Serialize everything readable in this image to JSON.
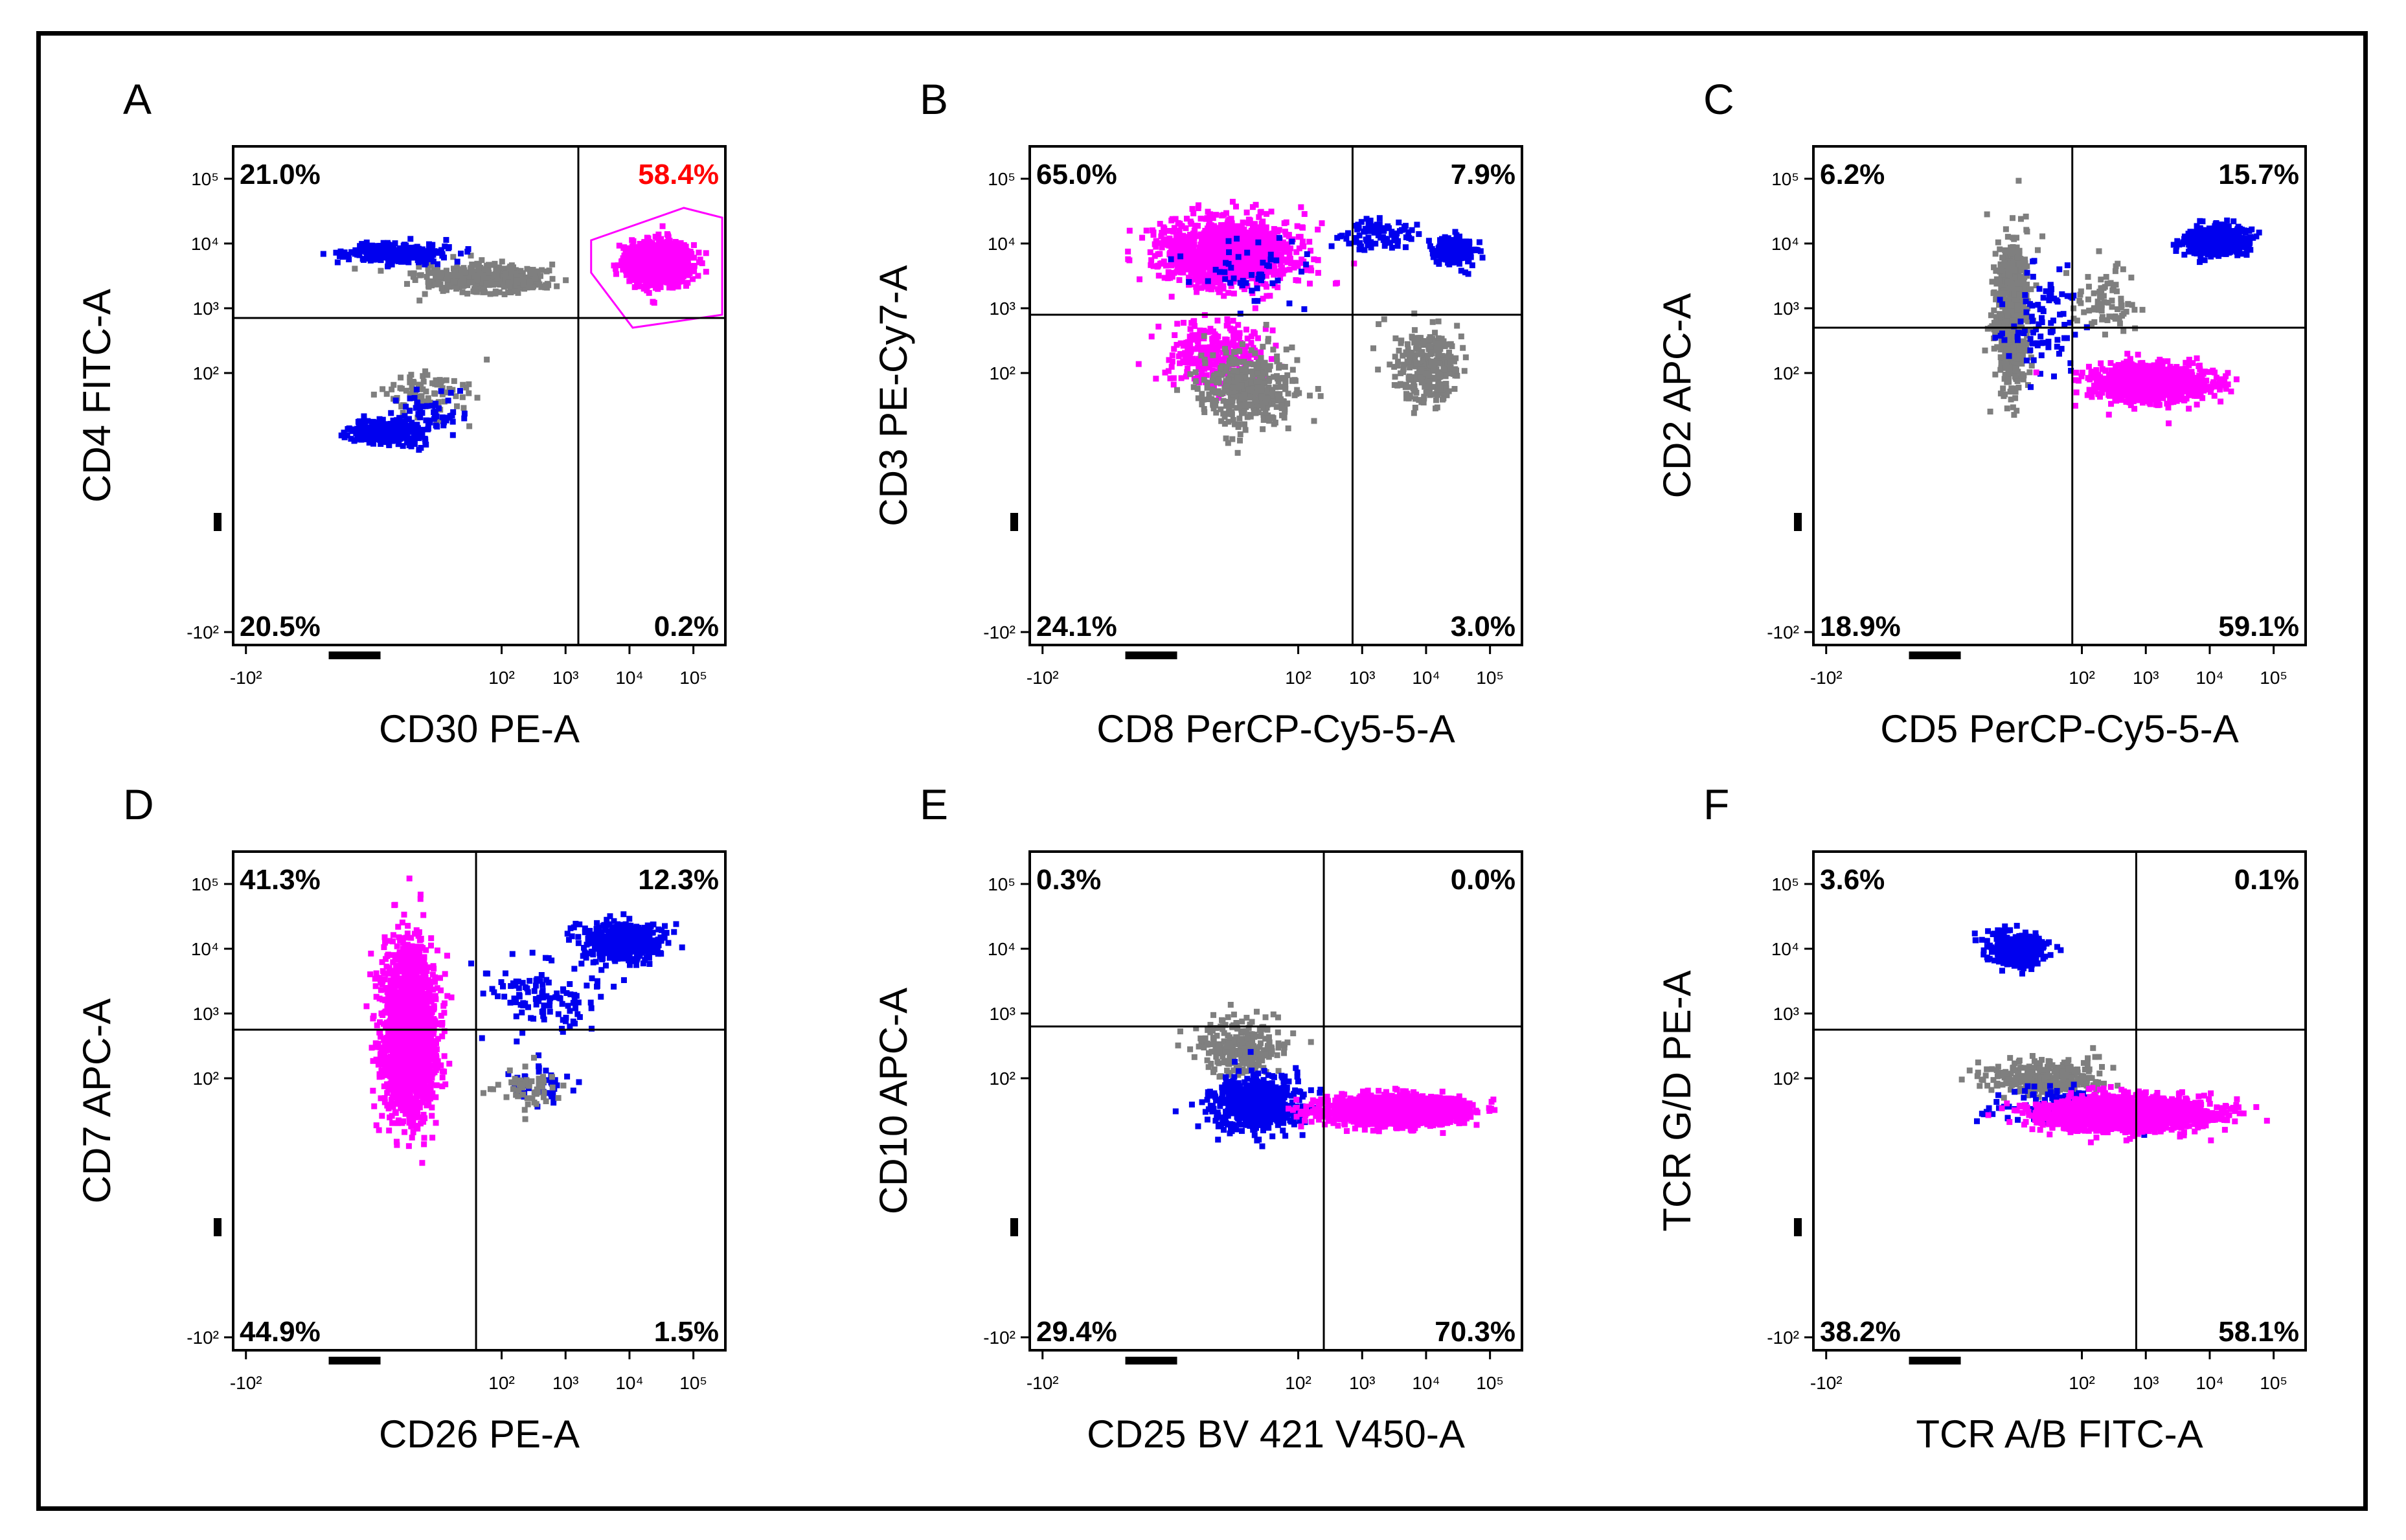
{
  "colors": {
    "blue": "#0000ee",
    "gray": "#7f7f7f",
    "magenta": "#ff00ff",
    "red": "#ff0000",
    "black": "#000000"
  },
  "chart_data": [
    {
      "panel": "A",
      "type": "scatter",
      "xlabel": "CD30 PE-A",
      "ylabel": "CD4 FITC-A",
      "x_ticks": [
        "-10²",
        "10²",
        "10³",
        "10⁴",
        "10⁵"
      ],
      "y_ticks": [
        "-10²",
        "10²",
        "10³",
        "10⁴",
        "10⁵"
      ],
      "axis_range_log10": [
        -2.2,
        5.5
      ],
      "quadrant_gate": {
        "x": 3.2,
        "y": 2.85
      },
      "quadrants": [
        {
          "position": "top-left",
          "label": "21.0%",
          "color": "#000000"
        },
        {
          "position": "top-right",
          "label": "58.4%",
          "color": "#ff0000"
        },
        {
          "position": "bottom-left",
          "label": "20.5%",
          "color": "#000000"
        },
        {
          "position": "bottom-right",
          "label": "0.2%",
          "color": "#000000"
        }
      ],
      "polygon_gate": [
        [
          3.4,
          4.05
        ],
        [
          4.85,
          4.55
        ],
        [
          5.45,
          4.4
        ],
        [
          5.45,
          2.9
        ],
        [
          4.05,
          2.7
        ],
        [
          3.4,
          3.55
        ]
      ],
      "populations": [
        {
          "color": "gray",
          "count": 380,
          "cx": 1.7,
          "cy": 3.45,
          "sx": 1.0,
          "sy": 0.22
        },
        {
          "color": "gray",
          "count": 90,
          "cx": 0.9,
          "cy": 1.65,
          "sx": 0.7,
          "sy": 0.4
        },
        {
          "color": "blue",
          "count": 320,
          "cx": 0.3,
          "cy": 3.85,
          "sx": 0.75,
          "sy": 0.14
        },
        {
          "color": "blue",
          "count": 300,
          "cx": 0.2,
          "cy": 1.1,
          "sx": 0.5,
          "sy": 0.2
        },
        {
          "color": "blue",
          "count": 60,
          "cx": 0.9,
          "cy": 1.35,
          "sx": 0.6,
          "sy": 0.35
        },
        {
          "color": "magenta",
          "count": 1500,
          "cx": 4.45,
          "cy": 3.7,
          "sx": 0.45,
          "sy": 0.3
        }
      ]
    },
    {
      "panel": "B",
      "type": "scatter",
      "xlabel": "CD8 PerCP-Cy5-5-A",
      "ylabel": "CD3 PE-Cy7-A",
      "x_ticks": [
        "-10²",
        "10²",
        "10³",
        "10⁴",
        "10⁵"
      ],
      "y_ticks": [
        "-10²",
        "10²",
        "10³",
        "10⁴",
        "10⁵"
      ],
      "axis_range_log10": [
        -2.2,
        5.5
      ],
      "quadrant_gate": {
        "x": 2.85,
        "y": 2.9
      },
      "quadrants": [
        {
          "position": "top-left",
          "label": "65.0%",
          "color": "#000000"
        },
        {
          "position": "top-right",
          "label": "7.9%",
          "color": "#000000"
        },
        {
          "position": "bottom-left",
          "label": "24.1%",
          "color": "#000000"
        },
        {
          "position": "bottom-right",
          "label": "3.0%",
          "color": "#000000"
        }
      ],
      "populations": [
        {
          "color": "magenta",
          "count": 1400,
          "cx": 0.9,
          "cy": 3.85,
          "sx": 1.0,
          "sy": 0.5
        },
        {
          "color": "magenta",
          "count": 280,
          "cx": 0.7,
          "cy": 2.3,
          "sx": 0.8,
          "sy": 0.5
        },
        {
          "color": "gray",
          "count": 420,
          "cx": 1.2,
          "cy": 1.75,
          "sx": 0.75,
          "sy": 0.55
        },
        {
          "color": "gray",
          "count": 260,
          "cx": 4.0,
          "cy": 2.1,
          "sx": 0.55,
          "sy": 0.6
        },
        {
          "color": "blue",
          "count": 320,
          "cx": 4.45,
          "cy": 3.9,
          "sx": 0.3,
          "sy": 0.2
        },
        {
          "color": "blue",
          "count": 90,
          "cx": 3.2,
          "cy": 4.15,
          "sx": 0.6,
          "sy": 0.25
        },
        {
          "color": "blue",
          "count": 50,
          "cx": 1.3,
          "cy": 3.6,
          "sx": 0.9,
          "sy": 0.5
        }
      ]
    },
    {
      "panel": "C",
      "type": "scatter",
      "xlabel": "CD5 PerCP-Cy5-5-A",
      "ylabel": "CD2 APC-A",
      "x_ticks": [
        "-10²",
        "10²",
        "10³",
        "10⁴",
        "10⁵"
      ],
      "y_ticks": [
        "-10²",
        "10²",
        "10³",
        "10⁴",
        "10⁵"
      ],
      "axis_range_log10": [
        -2.2,
        5.5
      ],
      "quadrant_gate": {
        "x": 1.85,
        "y": 2.7
      },
      "quadrants": [
        {
          "position": "top-left",
          "label": "6.2%",
          "color": "#000000"
        },
        {
          "position": "top-right",
          "label": "15.7%",
          "color": "#000000"
        },
        {
          "position": "bottom-left",
          "label": "18.9%",
          "color": "#000000"
        },
        {
          "position": "bottom-right",
          "label": "59.1%",
          "color": "#000000"
        }
      ],
      "populations": [
        {
          "color": "gray",
          "count": 650,
          "cx": 0.9,
          "cy": 2.9,
          "sx": 0.25,
          "sy": 1.15
        },
        {
          "color": "gray",
          "count": 80,
          "cx": 2.3,
          "cy": 3.1,
          "sx": 0.6,
          "sy": 0.5
        },
        {
          "color": "blue",
          "count": 650,
          "cx": 4.1,
          "cy": 4.05,
          "sx": 0.45,
          "sy": 0.2
        },
        {
          "color": "blue",
          "count": 90,
          "cx": 1.4,
          "cy": 2.8,
          "sx": 0.5,
          "sy": 0.8
        },
        {
          "color": "magenta",
          "count": 1100,
          "cx": 3.1,
          "cy": 1.85,
          "sx": 0.85,
          "sy": 0.28
        }
      ]
    },
    {
      "panel": "D",
      "type": "scatter",
      "xlabel": "CD26 PE-A",
      "ylabel": "CD7 APC-A",
      "x_ticks": [
        "-10²",
        "10²",
        "10³",
        "10⁴",
        "10⁵"
      ],
      "y_ticks": [
        "-10²",
        "10²",
        "10³",
        "10⁴",
        "10⁵"
      ],
      "axis_range_log10": [
        -2.2,
        5.5
      ],
      "quadrant_gate": {
        "x": 1.6,
        "y": 2.75
      },
      "quadrants": [
        {
          "position": "top-left",
          "label": "41.3%",
          "color": "#000000"
        },
        {
          "position": "top-right",
          "label": "12.3%",
          "color": "#000000"
        },
        {
          "position": "bottom-left",
          "label": "44.9%",
          "color": "#000000"
        },
        {
          "position": "bottom-right",
          "label": "1.5%",
          "color": "#000000"
        }
      ],
      "populations": [
        {
          "color": "magenta",
          "count": 2000,
          "cx": 0.55,
          "cy": 2.7,
          "sx": 0.42,
          "sy": 1.25
        },
        {
          "color": "blue",
          "count": 520,
          "cx": 3.9,
          "cy": 4.1,
          "sx": 0.6,
          "sy": 0.28
        },
        {
          "color": "blue",
          "count": 120,
          "cx": 2.7,
          "cy": 3.3,
          "sx": 1.0,
          "sy": 0.6
        },
        {
          "color": "blue",
          "count": 40,
          "cx": 2.6,
          "cy": 1.9,
          "sx": 0.6,
          "sy": 0.3
        },
        {
          "color": "gray",
          "count": 60,
          "cx": 2.4,
          "cy": 1.85,
          "sx": 0.5,
          "sy": 0.25
        }
      ]
    },
    {
      "panel": "E",
      "type": "scatter",
      "xlabel": "CD25 BV 421 V450-A",
      "ylabel": "CD10 APC-A",
      "x_ticks": [
        "-10²",
        "10²",
        "10³",
        "10⁴",
        "10⁵"
      ],
      "y_ticks": [
        "-10²",
        "10²",
        "10³",
        "10⁴",
        "10⁵"
      ],
      "axis_range_log10": [
        -2.2,
        5.5
      ],
      "quadrant_gate": {
        "x": 2.4,
        "y": 2.8
      },
      "quadrants": [
        {
          "position": "top-left",
          "label": "0.3%",
          "color": "#000000"
        },
        {
          "position": "top-right",
          "label": "0.0%",
          "color": "#000000"
        },
        {
          "position": "bottom-left",
          "label": "29.4%",
          "color": "#000000"
        },
        {
          "position": "bottom-right",
          "label": "70.3%",
          "color": "#000000"
        }
      ],
      "populations": [
        {
          "color": "gray",
          "count": 280,
          "cx": 1.1,
          "cy": 2.5,
          "sx": 0.7,
          "sy": 0.45
        },
        {
          "color": "blue",
          "count": 650,
          "cx": 1.35,
          "cy": 1.6,
          "sx": 0.65,
          "sy": 0.4
        },
        {
          "color": "magenta",
          "count": 1800,
          "cx": 3.5,
          "cy": 1.5,
          "sx": 1.05,
          "sy": 0.22
        }
      ]
    },
    {
      "panel": "F",
      "type": "scatter",
      "xlabel": "TCR A/B FITC-A",
      "ylabel": "TCR G/D PE-A",
      "x_ticks": [
        "-10²",
        "10²",
        "10³",
        "10⁴",
        "10⁵"
      ],
      "y_ticks": [
        "-10²",
        "10²",
        "10³",
        "10⁴",
        "10⁵"
      ],
      "axis_range_log10": [
        -2.2,
        5.5
      ],
      "quadrant_gate": {
        "x": 2.85,
        "y": 2.75
      },
      "quadrants": [
        {
          "position": "top-left",
          "label": "3.6%",
          "color": "#000000"
        },
        {
          "position": "top-right",
          "label": "0.1%",
          "color": "#000000"
        },
        {
          "position": "bottom-left",
          "label": "38.2%",
          "color": "#000000"
        },
        {
          "position": "bottom-right",
          "label": "58.1%",
          "color": "#000000"
        }
      ],
      "populations": [
        {
          "color": "blue",
          "count": 420,
          "cx": 1.0,
          "cy": 4.0,
          "sx": 0.45,
          "sy": 0.25
        },
        {
          "color": "gray",
          "count": 320,
          "cx": 1.4,
          "cy": 2.0,
          "sx": 0.9,
          "sy": 0.25
        },
        {
          "color": "blue",
          "count": 120,
          "cx": 1.7,
          "cy": 1.55,
          "sx": 1.2,
          "sy": 0.3
        },
        {
          "color": "magenta",
          "count": 1900,
          "cx": 2.7,
          "cy": 1.45,
          "sx": 1.3,
          "sy": 0.25
        }
      ]
    }
  ]
}
